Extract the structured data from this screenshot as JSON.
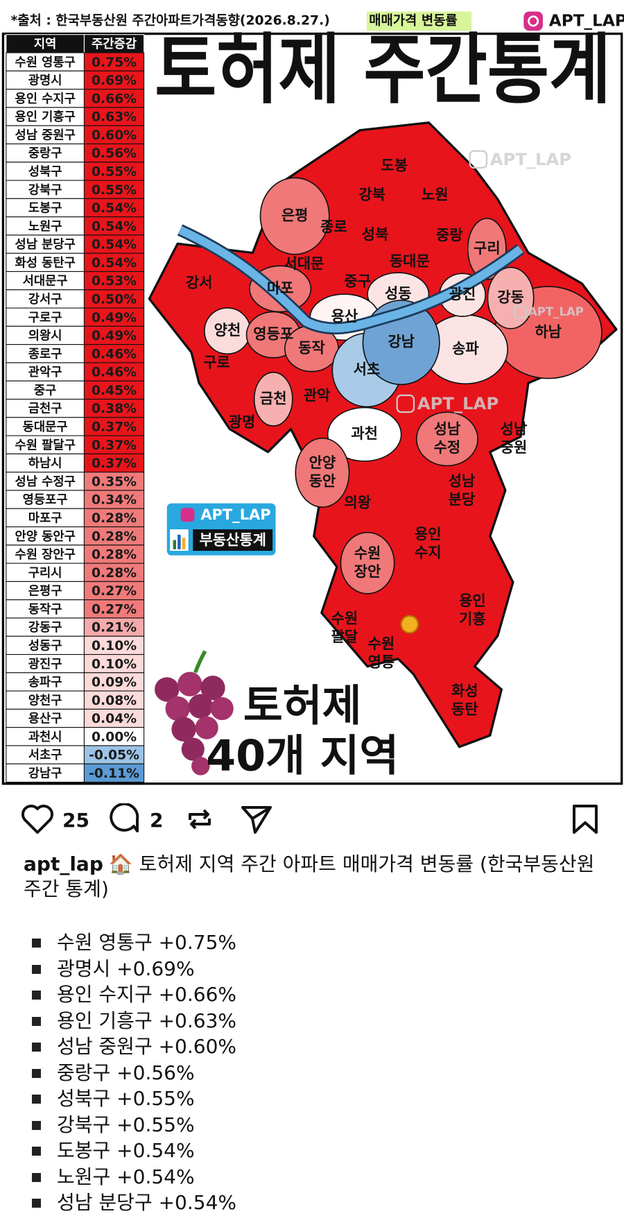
{
  "header": {
    "source": "*출처 : 한국부동산원 주간아파트가격동향(2026.8.27.)",
    "highlight": "매매가격 변동률",
    "brand": "APT_LAP"
  },
  "title": "토허제 주간통계",
  "table": {
    "columns": [
      "지역",
      "주간증감"
    ],
    "rows": [
      [
        "수원 영통구",
        "0.75%"
      ],
      [
        "광명시",
        "0.69%"
      ],
      [
        "용인 수지구",
        "0.66%"
      ],
      [
        "용인 기흥구",
        "0.63%"
      ],
      [
        "성남 중원구",
        "0.60%"
      ],
      [
        "중랑구",
        "0.56%"
      ],
      [
        "성북구",
        "0.55%"
      ],
      [
        "강북구",
        "0.55%"
      ],
      [
        "도봉구",
        "0.54%"
      ],
      [
        "노원구",
        "0.54%"
      ],
      [
        "성남 분당구",
        "0.54%"
      ],
      [
        "화성 동탄구",
        "0.54%"
      ],
      [
        "서대문구",
        "0.53%"
      ],
      [
        "강서구",
        "0.50%"
      ],
      [
        "구로구",
        "0.49%"
      ],
      [
        "의왕시",
        "0.49%"
      ],
      [
        "종로구",
        "0.46%"
      ],
      [
        "관악구",
        "0.46%"
      ],
      [
        "중구",
        "0.45%"
      ],
      [
        "금천구",
        "0.38%"
      ],
      [
        "동대문구",
        "0.37%"
      ],
      [
        "수원 팔달구",
        "0.37%"
      ],
      [
        "하남시",
        "0.37%"
      ],
      [
        "성남 수정구",
        "0.35%"
      ],
      [
        "영등포구",
        "0.34%"
      ],
      [
        "마포구",
        "0.28%"
      ],
      [
        "안양 동안구",
        "0.28%"
      ],
      [
        "수원 장안구",
        "0.28%"
      ],
      [
        "구리시",
        "0.28%"
      ],
      [
        "은평구",
        "0.27%"
      ],
      [
        "동작구",
        "0.27%"
      ],
      [
        "강동구",
        "0.21%"
      ],
      [
        "성동구",
        "0.10%"
      ],
      [
        "광진구",
        "0.10%"
      ],
      [
        "송파구",
        "0.09%"
      ],
      [
        "양천구",
        "0.08%"
      ],
      [
        "용산구",
        "0.04%"
      ],
      [
        "과천시",
        "0.00%"
      ],
      [
        "서초구",
        "-0.05%"
      ],
      [
        "강남구",
        "-0.11%"
      ]
    ]
  },
  "map": {
    "labels": [
      [
        "도봉"
      ],
      [
        "노원"
      ],
      [
        "강북"
      ],
      [
        "은평"
      ],
      [
        "종로"
      ],
      [
        "성북"
      ],
      [
        "중랑"
      ],
      [
        "구리"
      ],
      [
        "서대문"
      ],
      [
        "동대문"
      ],
      [
        "강서"
      ],
      [
        "마포"
      ],
      [
        "중구"
      ],
      [
        "성동"
      ],
      [
        "광진"
      ],
      [
        "강동"
      ],
      [
        "용산"
      ],
      [
        "양천"
      ],
      [
        "영등포"
      ],
      [
        "동작"
      ],
      [
        "강남"
      ],
      [
        "송파"
      ],
      [
        "하남"
      ],
      [
        "구로"
      ],
      [
        "서초"
      ],
      [
        "금천"
      ],
      [
        "관악"
      ],
      [
        "광명"
      ],
      [
        "과천"
      ],
      [
        "성남",
        "수정"
      ],
      [
        "성남",
        "중원"
      ],
      [
        "안양",
        "동안"
      ],
      [
        "성남",
        "분당"
      ],
      [
        "의왕"
      ],
      [
        "용인",
        "수지"
      ],
      [
        "수원",
        "장안"
      ],
      [
        "용인",
        "기흥"
      ],
      [
        "수원",
        "팔달"
      ],
      [
        "수원",
        "영통"
      ],
      [
        "화성",
        "동탄"
      ]
    ],
    "watermarks": [
      "APT_LAP",
      "APT_LAP",
      "APT_LAP"
    ]
  },
  "badge": {
    "brand": "APT_LAP",
    "name": "부동산통계"
  },
  "footer": {
    "line1": "토허제",
    "line2": "40개 지역"
  },
  "post": {
    "likes": 25,
    "comments": 2,
    "username": "apt_lap",
    "caption": "🏠 토허제 지역 주간 아파트 매매가격 변동률 (한국부동산원 주간 통계)",
    "items": [
      "수원 영통구 +0.75%",
      "광명시 +0.69%",
      "용인 수지구 +0.66%",
      "용인 기흥구 +0.63%",
      "성남 중원구 +0.60%",
      "중랑구 +0.56%",
      "성북구 +0.55%",
      "강북구 +0.55%",
      "도봉구 +0.54%",
      "노원구 +0.54%",
      "성남 분당구 +0.54%"
    ]
  }
}
